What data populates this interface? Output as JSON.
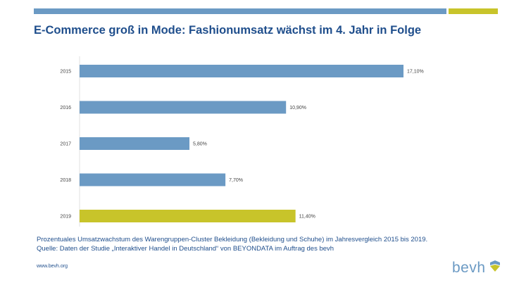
{
  "title": "E-Commerce groß in Mode: Fashionumsatz wächst im 4. Jahr in Folge",
  "caption": {
    "line1": "Prozentuales Umsatzwachstum des Warengruppen-Cluster Bekleidung (Bekleidung und Schuhe) im Jahresvergleich 2015 bis 2019.",
    "line2": "Quelle: Daten der Studie „Interaktiver Handel in Deutschland“ von BEYONDATA im Auftrag des bevh"
  },
  "footer": {
    "url": "www.bevh.org"
  },
  "logo": {
    "text": "bevh"
  },
  "colors": {
    "primary": "#6b9ac4",
    "highlight": "#c8c42a",
    "title": "#1f4e8c"
  },
  "chart_data": {
    "type": "bar",
    "orientation": "horizontal",
    "categories": [
      "2015",
      "2016",
      "2017",
      "2018",
      "2019"
    ],
    "values": [
      17.1,
      10.9,
      5.8,
      7.7,
      11.4
    ],
    "data_labels": [
      "17,10%",
      "10,90%",
      "5,80%",
      "7,70%",
      "11,40%"
    ],
    "highlight_index": 4,
    "xlim": [
      0,
      18
    ],
    "grid": false,
    "legend": "none"
  }
}
